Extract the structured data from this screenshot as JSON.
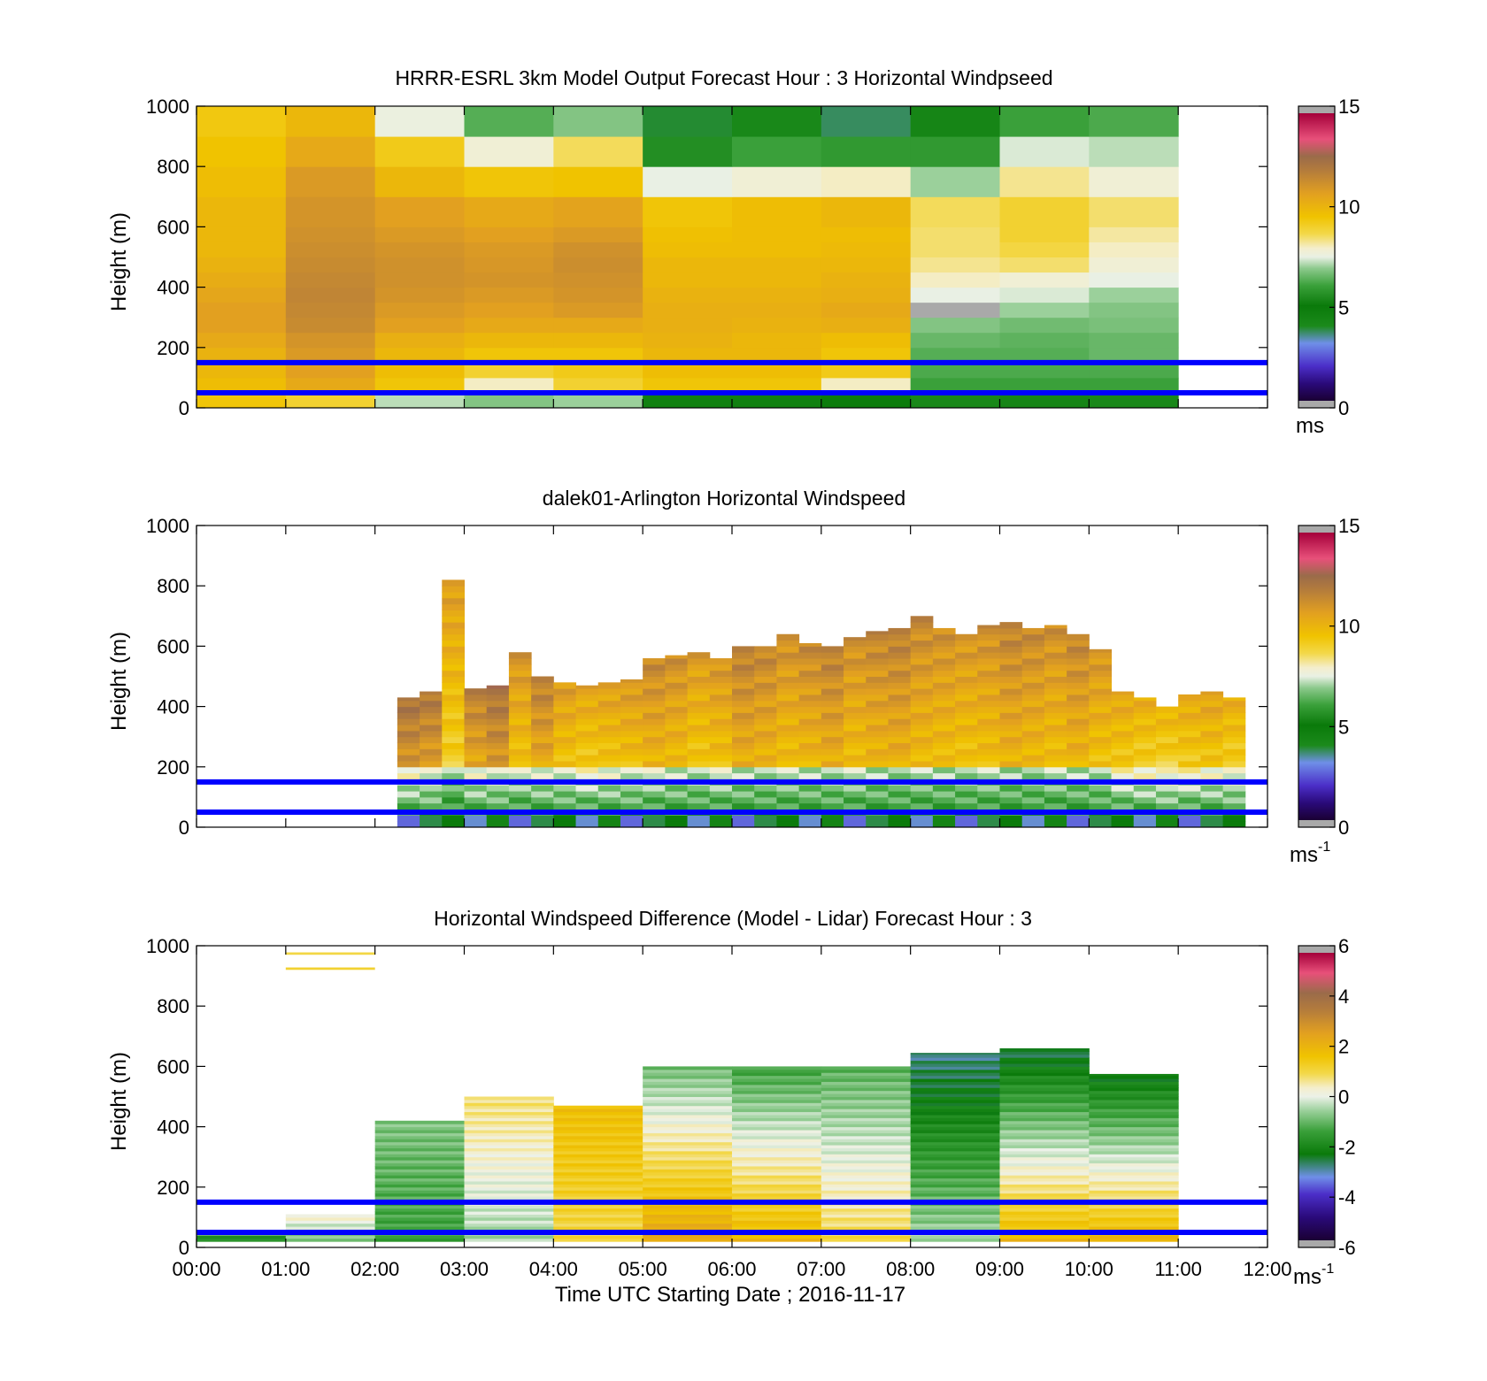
{
  "colors": {
    "reference_line": "#0000ff",
    "frame": "#000000",
    "missing": "#a9a9a9"
  },
  "time_ticks": [
    "00:00",
    "01:00",
    "02:00",
    "03:00",
    "04:00",
    "05:00",
    "06:00",
    "07:00",
    "08:00",
    "09:00",
    "10:00",
    "11:00",
    "12:00"
  ],
  "x_label": "Time UTC  Starting Date ; 2016-11-17",
  "chart_data": [
    {
      "type": "heatmap",
      "title": "HRRR-ESRL 3km Model Output   Forecast Hour : 3 Horizontal Windpseed",
      "ylabel": "Height (m)",
      "xlim_hours": [
        0,
        12
      ],
      "ylim": [
        0,
        1000
      ],
      "yticks": [
        "0",
        "200",
        "400",
        "600",
        "800",
        "1000"
      ],
      "reference_lines_m": [
        150,
        50
      ],
      "colorbar": {
        "range": [
          0,
          15
        ],
        "ticks": [
          "0",
          "5",
          "10",
          "15"
        ],
        "unit": "ms",
        "unit_sup": "",
        "palette": "speed"
      },
      "columns_hours": [
        0,
        1,
        2,
        3,
        4,
        5,
        6,
        7,
        8,
        9,
        10
      ],
      "column_width_hours": 1,
      "row_edges_m": [
        0,
        50,
        100,
        150,
        200,
        250,
        300,
        350,
        400,
        450,
        500,
        550,
        600,
        700,
        800,
        900,
        1000
      ],
      "values": [
        [
          9.5,
          9.0,
          7.2,
          6.8,
          7.0,
          4.5,
          4.5,
          5.0,
          4.0,
          4.2,
          4.0
        ],
        [
          9.8,
          10.5,
          9.5,
          8.0,
          9.0,
          9.5,
          9.5,
          8.0,
          6.0,
          6.0,
          6.0
        ],
        [
          10.0,
          10.8,
          9.8,
          9.0,
          9.3,
          9.8,
          9.8,
          9.3,
          6.2,
          6.2,
          6.2
        ],
        [
          10.2,
          11.0,
          10.0,
          9.5,
          9.5,
          10.0,
          10.0,
          9.5,
          6.3,
          6.3,
          6.5
        ],
        [
          10.5,
          11.2,
          10.3,
          10.0,
          10.0,
          10.2,
          10.0,
          9.8,
          6.5,
          6.4,
          6.5
        ],
        [
          10.8,
          11.5,
          10.8,
          10.5,
          10.5,
          10.3,
          10.2,
          10.3,
          6.8,
          6.6,
          6.7
        ],
        [
          10.8,
          11.6,
          11.0,
          10.8,
          11.0,
          10.3,
          10.3,
          10.5,
          "NaN",
          7.0,
          6.8
        ],
        [
          10.6,
          11.7,
          11.2,
          11.0,
          11.2,
          10.2,
          10.2,
          10.3,
          7.5,
          7.4,
          7.0
        ],
        [
          10.4,
          11.6,
          11.3,
          11.2,
          11.3,
          10.0,
          10.0,
          10.2,
          8.0,
          7.8,
          7.5
        ],
        [
          10.2,
          11.5,
          11.3,
          11.1,
          11.4,
          10.0,
          10.0,
          10.0,
          8.3,
          8.5,
          7.8
        ],
        [
          10.0,
          11.4,
          11.2,
          11.0,
          11.3,
          9.8,
          9.8,
          9.9,
          8.5,
          8.8,
          8.0
        ],
        [
          10.0,
          11.3,
          11.0,
          10.8,
          11.0,
          9.7,
          9.8,
          9.8,
          8.5,
          9.0,
          8.2
        ],
        [
          10.0,
          11.2,
          10.8,
          10.5,
          10.7,
          9.5,
          9.8,
          10.0,
          8.6,
          9.0,
          8.5
        ],
        [
          9.8,
          11.0,
          10.0,
          9.5,
          9.6,
          7.5,
          7.8,
          8.0,
          7.0,
          8.3,
          7.8
        ],
        [
          9.6,
          10.5,
          9.3,
          7.8,
          8.6,
          5.5,
          6.0,
          5.8,
          5.8,
          7.4,
          7.2
        ],
        [
          9.4,
          10.0,
          7.6,
          6.3,
          6.8,
          3.8,
          4.0,
          3.6,
          4.2,
          6.0,
          6.2
        ]
      ]
    },
    {
      "type": "heatmap",
      "title": "dalek01-Arlington  Horizontal Windspeed",
      "ylabel": "Height (m)",
      "xlim_hours": [
        0,
        12
      ],
      "ylim": [
        0,
        1000
      ],
      "yticks": [
        "0",
        "200",
        "400",
        "600",
        "800",
        "1000"
      ],
      "reference_lines_m": [
        150,
        50
      ],
      "colorbar": {
        "range": [
          0,
          15
        ],
        "ticks": [
          "0",
          "5",
          "10",
          "15"
        ],
        "unit": "ms",
        "unit_sup": "-1",
        "palette": "speed"
      },
      "columns": [
        {
          "t": 2.25,
          "top": 430,
          "v": 11.0
        },
        {
          "t": 2.5,
          "top": 450,
          "v": 10.8
        },
        {
          "t": 2.75,
          "top": 820,
          "v": 9.5
        },
        {
          "t": 3.0,
          "top": 460,
          "v": 10.5
        },
        {
          "t": 3.25,
          "top": 470,
          "v": 11.0
        },
        {
          "t": 3.5,
          "top": 580,
          "v": 9.8
        },
        {
          "t": 3.75,
          "top": 500,
          "v": 10.5
        },
        {
          "t": 4.0,
          "top": 480,
          "v": 9.6
        },
        {
          "t": 4.25,
          "top": 470,
          "v": 9.3
        },
        {
          "t": 4.5,
          "top": 480,
          "v": 9.5
        },
        {
          "t": 4.75,
          "top": 490,
          "v": 9.7
        },
        {
          "t": 5.0,
          "top": 560,
          "v": 10.2
        },
        {
          "t": 5.25,
          "top": 570,
          "v": 10.0
        },
        {
          "t": 5.5,
          "top": 580,
          "v": 9.6
        },
        {
          "t": 5.75,
          "top": 560,
          "v": 9.8
        },
        {
          "t": 6.0,
          "top": 600,
          "v": 10.5
        },
        {
          "t": 6.25,
          "top": 600,
          "v": 10.3
        },
        {
          "t": 6.5,
          "top": 640,
          "v": 10.0
        },
        {
          "t": 6.75,
          "top": 610,
          "v": 10.2
        },
        {
          "t": 7.0,
          "top": 600,
          "v": 10.5
        },
        {
          "t": 7.25,
          "top": 630,
          "v": 10.0
        },
        {
          "t": 7.5,
          "top": 650,
          "v": 10.3
        },
        {
          "t": 7.75,
          "top": 660,
          "v": 10.5
        },
        {
          "t": 8.0,
          "top": 700,
          "v": 10.2
        },
        {
          "t": 8.25,
          "top": 660,
          "v": 10.0
        },
        {
          "t": 8.5,
          "top": 640,
          "v": 9.8
        },
        {
          "t": 8.75,
          "top": 670,
          "v": 10.0
        },
        {
          "t": 9.0,
          "top": 680,
          "v": 10.4
        },
        {
          "t": 9.25,
          "top": 660,
          "v": 10.2
        },
        {
          "t": 9.5,
          "top": 670,
          "v": 10.0
        },
        {
          "t": 9.75,
          "top": 640,
          "v": 10.3
        },
        {
          "t": 10.0,
          "top": 590,
          "v": 9.8
        },
        {
          "t": 10.25,
          "top": 450,
          "v": 9.3
        },
        {
          "t": 10.5,
          "top": 430,
          "v": 9.0
        },
        {
          "t": 10.75,
          "top": 400,
          "v": 8.8
        },
        {
          "t": 11.0,
          "top": 440,
          "v": 9.2
        },
        {
          "t": 11.25,
          "top": 450,
          "v": 9.4
        },
        {
          "t": 11.5,
          "top": 430,
          "v": 9.0
        }
      ]
    },
    {
      "type": "heatmap",
      "title": "Horizontal Windspeed Difference (Model - Lidar) Forecast Hour : 3",
      "ylabel": "Height (m)",
      "xlim_hours": [
        0,
        12
      ],
      "ylim": [
        0,
        1000
      ],
      "yticks": [
        "0",
        "200",
        "400",
        "600",
        "800",
        "1000"
      ],
      "reference_lines_m": [
        150,
        50
      ],
      "colorbar": {
        "range": [
          -6,
          6
        ],
        "ticks": [
          "-6",
          "-4",
          "-2",
          "0",
          "2",
          "4",
          "6"
        ],
        "unit": "ms",
        "unit_sup": "-1",
        "palette": "diff"
      },
      "columns": [
        {
          "t0": 0,
          "t1": 1,
          "top": 40,
          "bottom_value": -2.0,
          "top_value": -1.5
        },
        {
          "t0": 1,
          "t1": 2,
          "top": 110,
          "bottom_value": -1.0,
          "top_value": 0.5
        },
        {
          "t0": 2,
          "t1": 3,
          "top": 420,
          "bottom_value": -1.5,
          "top_value": -0.8
        },
        {
          "t0": 3,
          "t1": 4,
          "top": 500,
          "bottom_value": -0.5,
          "top_value": 0.8
        },
        {
          "t0": 4,
          "t1": 5,
          "top": 470,
          "bottom_value": 1.0,
          "top_value": 1.8
        },
        {
          "t0": 5,
          "t1": 6,
          "top": 600,
          "bottom_value": 2.5,
          "top_value": -1.0
        },
        {
          "t0": 6,
          "t1": 7,
          "top": 600,
          "bottom_value": 2.0,
          "top_value": -1.5
        },
        {
          "t0": 7,
          "t1": 8,
          "top": 600,
          "bottom_value": 1.0,
          "top_value": -1.2
        },
        {
          "t0": 8,
          "t1": 9,
          "top": 645,
          "bottom_value": -0.5,
          "top_value": -3.0
        },
        {
          "t0": 9,
          "t1": 10,
          "top": 660,
          "bottom_value": 2.0,
          "top_value": -2.8
        },
        {
          "t0": 10,
          "t1": 11,
          "top": 575,
          "bottom_value": 2.0,
          "top_value": -2.5
        }
      ],
      "upper_segments": [
        {
          "t0": 1,
          "t1": 2,
          "h": 970,
          "v": 1.0
        },
        {
          "t0": 1,
          "t1": 2,
          "h": 920,
          "v": 1.2
        }
      ]
    }
  ]
}
